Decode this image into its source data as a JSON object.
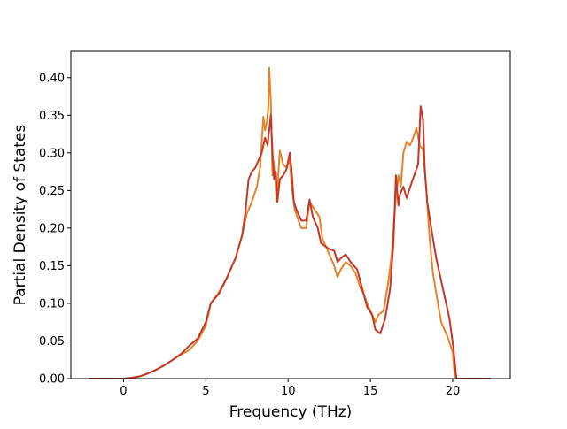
{
  "chart_data": {
    "type": "line",
    "title": "",
    "xlabel": "Frequency (THz)",
    "ylabel": "Partial Density of States",
    "xlim": [
      -3.2,
      23.5
    ],
    "ylim": [
      0,
      0.435
    ],
    "xticks": [
      0,
      5,
      10,
      15,
      20
    ],
    "yticks": [
      0.0,
      0.05,
      0.1,
      0.15,
      0.2,
      0.25,
      0.3,
      0.35,
      0.4
    ],
    "xtick_labels": [
      "0",
      "5",
      "10",
      "15",
      "20"
    ],
    "ytick_labels": [
      "0.00",
      "0.05",
      "0.10",
      "0.15",
      "0.20",
      "0.25",
      "0.30",
      "0.35",
      "0.40"
    ],
    "grid": false,
    "legend": false,
    "series": [
      {
        "color": "#e6832a",
        "points": [
          [
            -2.1,
            0
          ],
          [
            0,
            0
          ],
          [
            0.5,
            0.001
          ],
          [
            1,
            0.003
          ],
          [
            1.5,
            0.007
          ],
          [
            2,
            0.012
          ],
          [
            2.5,
            0.018
          ],
          [
            3,
            0.025
          ],
          [
            3.5,
            0.032
          ],
          [
            4,
            0.038
          ],
          [
            4.5,
            0.05
          ],
          [
            5,
            0.07
          ],
          [
            5.3,
            0.1
          ],
          [
            5.8,
            0.115
          ],
          [
            6.3,
            0.135
          ],
          [
            6.8,
            0.16
          ],
          [
            7.2,
            0.19
          ],
          [
            7.5,
            0.22
          ],
          [
            7.8,
            0.235
          ],
          [
            8.1,
            0.255
          ],
          [
            8.3,
            0.28
          ],
          [
            8.5,
            0.348
          ],
          [
            8.6,
            0.33
          ],
          [
            8.7,
            0.34
          ],
          [
            8.8,
            0.36
          ],
          [
            8.85,
            0.413
          ],
          [
            8.95,
            0.37
          ],
          [
            9.05,
            0.27
          ],
          [
            9.1,
            0.29
          ],
          [
            9.2,
            0.27
          ],
          [
            9.3,
            0.235
          ],
          [
            9.4,
            0.27
          ],
          [
            9.5,
            0.303
          ],
          [
            9.7,
            0.285
          ],
          [
            9.9,
            0.28
          ],
          [
            10.1,
            0.292
          ],
          [
            10.2,
            0.26
          ],
          [
            10.4,
            0.225
          ],
          [
            10.6,
            0.212
          ],
          [
            10.8,
            0.2
          ],
          [
            11.1,
            0.2
          ],
          [
            11.3,
            0.235
          ],
          [
            11.6,
            0.225
          ],
          [
            11.9,
            0.215
          ],
          [
            12.1,
            0.185
          ],
          [
            12.5,
            0.165
          ],
          [
            12.8,
            0.15
          ],
          [
            13.0,
            0.135
          ],
          [
            13.2,
            0.145
          ],
          [
            13.5,
            0.155
          ],
          [
            13.8,
            0.15
          ],
          [
            14.1,
            0.14
          ],
          [
            14.4,
            0.12
          ],
          [
            14.6,
            0.112
          ],
          [
            14.8,
            0.1
          ],
          [
            15.0,
            0.09
          ],
          [
            15.3,
            0.075
          ],
          [
            15.5,
            0.085
          ],
          [
            15.8,
            0.09
          ],
          [
            16.1,
            0.13
          ],
          [
            16.3,
            0.165
          ],
          [
            16.5,
            0.23
          ],
          [
            16.7,
            0.27
          ],
          [
            16.85,
            0.255
          ],
          [
            17.0,
            0.3
          ],
          [
            17.2,
            0.315
          ],
          [
            17.4,
            0.31
          ],
          [
            17.6,
            0.32
          ],
          [
            17.8,
            0.333
          ],
          [
            18.0,
            0.31
          ],
          [
            18.2,
            0.305
          ],
          [
            18.4,
            0.25
          ],
          [
            18.6,
            0.185
          ],
          [
            18.8,
            0.14
          ],
          [
            19.1,
            0.1
          ],
          [
            19.3,
            0.075
          ],
          [
            19.7,
            0.055
          ],
          [
            20.0,
            0.035
          ],
          [
            20.1,
            0.01
          ],
          [
            20.2,
            0
          ],
          [
            22.3,
            0
          ]
        ]
      },
      {
        "color": "#c0392b",
        "points": [
          [
            -2.1,
            0
          ],
          [
            0,
            0
          ],
          [
            0.5,
            0.001
          ],
          [
            1,
            0.003
          ],
          [
            1.5,
            0.007
          ],
          [
            2,
            0.012
          ],
          [
            2.5,
            0.018
          ],
          [
            3,
            0.025
          ],
          [
            3.5,
            0.033
          ],
          [
            4,
            0.044
          ],
          [
            4.5,
            0.053
          ],
          [
            5,
            0.075
          ],
          [
            5.3,
            0.1
          ],
          [
            5.8,
            0.113
          ],
          [
            6.3,
            0.135
          ],
          [
            6.8,
            0.16
          ],
          [
            7.2,
            0.19
          ],
          [
            7.4,
            0.22
          ],
          [
            7.6,
            0.265
          ],
          [
            7.8,
            0.275
          ],
          [
            8.0,
            0.28
          ],
          [
            8.2,
            0.29
          ],
          [
            8.4,
            0.3
          ],
          [
            8.6,
            0.32
          ],
          [
            8.75,
            0.31
          ],
          [
            8.95,
            0.35
          ],
          [
            9.05,
            0.3
          ],
          [
            9.15,
            0.265
          ],
          [
            9.25,
            0.275
          ],
          [
            9.35,
            0.235
          ],
          [
            9.5,
            0.265
          ],
          [
            9.7,
            0.27
          ],
          [
            9.9,
            0.278
          ],
          [
            10.1,
            0.3
          ],
          [
            10.2,
            0.28
          ],
          [
            10.35,
            0.235
          ],
          [
            10.5,
            0.225
          ],
          [
            10.8,
            0.21
          ],
          [
            11.1,
            0.21
          ],
          [
            11.3,
            0.238
          ],
          [
            11.5,
            0.215
          ],
          [
            11.8,
            0.2
          ],
          [
            12.0,
            0.18
          ],
          [
            12.5,
            0.172
          ],
          [
            12.8,
            0.17
          ],
          [
            13.0,
            0.155
          ],
          [
            13.2,
            0.16
          ],
          [
            13.5,
            0.165
          ],
          [
            13.8,
            0.155
          ],
          [
            14.2,
            0.145
          ],
          [
            14.5,
            0.12
          ],
          [
            14.8,
            0.095
          ],
          [
            15.1,
            0.085
          ],
          [
            15.3,
            0.065
          ],
          [
            15.6,
            0.06
          ],
          [
            15.9,
            0.08
          ],
          [
            16.2,
            0.12
          ],
          [
            16.4,
            0.18
          ],
          [
            16.55,
            0.27
          ],
          [
            16.7,
            0.23
          ],
          [
            16.8,
            0.245
          ],
          [
            17.0,
            0.255
          ],
          [
            17.2,
            0.24
          ],
          [
            17.5,
            0.26
          ],
          [
            17.9,
            0.285
          ],
          [
            18.05,
            0.362
          ],
          [
            18.2,
            0.345
          ],
          [
            18.3,
            0.28
          ],
          [
            18.45,
            0.235
          ],
          [
            18.7,
            0.2
          ],
          [
            19.0,
            0.16
          ],
          [
            19.4,
            0.12
          ],
          [
            19.8,
            0.08
          ],
          [
            20.05,
            0.04
          ],
          [
            20.2,
            0.005
          ],
          [
            20.25,
            0
          ],
          [
            22.3,
            0
          ]
        ]
      }
    ]
  }
}
